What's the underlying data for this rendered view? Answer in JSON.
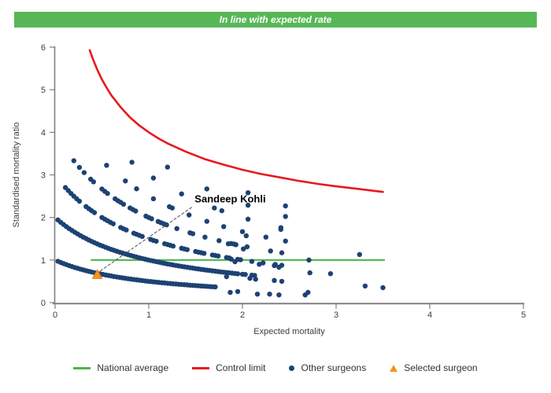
{
  "header": {
    "status_text": "In line with expected rate",
    "bg_color": "#57b757",
    "text_color": "#ffffff"
  },
  "colors": {
    "points": "#1d4273",
    "control_limit": "#e8191c",
    "national_average": "#4cb648",
    "selected": "#f7941d",
    "selected_border": "#d97b0d",
    "axis": "#808080"
  },
  "chart_data": {
    "type": "scatter",
    "xlabel": "Expected mortality",
    "ylabel": "Standardised mortality ratio",
    "xlim": [
      0,
      5
    ],
    "ylim": [
      0,
      6
    ],
    "x_ticks": [
      0,
      1,
      2,
      3,
      4,
      5
    ],
    "y_ticks": [
      0,
      1,
      2,
      3,
      4,
      5,
      6
    ],
    "grid": false,
    "legend_position": "bottom",
    "national_average": {
      "name": "National average",
      "y": 1,
      "points": [
        [
          0.38,
          1
        ],
        [
          3.52,
          1
        ]
      ]
    },
    "control_limit": {
      "name": "Control limit",
      "points": [
        [
          0.37,
          5.93
        ],
        [
          0.4,
          5.74
        ],
        [
          0.45,
          5.47
        ],
        [
          0.5,
          5.24
        ],
        [
          0.55,
          5.05
        ],
        [
          0.6,
          4.87
        ],
        [
          0.7,
          4.59
        ],
        [
          0.8,
          4.35
        ],
        [
          0.9,
          4.16
        ],
        [
          1.0,
          4.0
        ],
        [
          1.1,
          3.86
        ],
        [
          1.2,
          3.74
        ],
        [
          1.4,
          3.54
        ],
        [
          1.6,
          3.37
        ],
        [
          1.8,
          3.24
        ],
        [
          2.0,
          3.12
        ],
        [
          2.2,
          3.02
        ],
        [
          2.4,
          2.94
        ],
        [
          2.6,
          2.86
        ],
        [
          2.8,
          2.79
        ],
        [
          3.0,
          2.73
        ],
        [
          3.2,
          2.68
        ],
        [
          3.5,
          2.6
        ]
      ]
    },
    "other_surgeons": {
      "name": "Other surgeons",
      "points": [
        [
          0.03,
          0.971
        ],
        [
          0.06,
          0.943
        ],
        [
          0.09,
          0.917
        ],
        [
          0.12,
          0.893
        ],
        [
          0.15,
          0.87
        ],
        [
          0.18,
          0.847
        ],
        [
          0.21,
          0.826
        ],
        [
          0.24,
          0.806
        ],
        [
          0.27,
          0.787
        ],
        [
          0.3,
          0.769
        ],
        [
          0.33,
          0.752
        ],
        [
          0.36,
          0.735
        ],
        [
          0.39,
          0.719
        ],
        [
          0.42,
          0.704
        ],
        [
          0.45,
          0.69
        ],
        [
          0.48,
          0.676
        ],
        [
          0.51,
          0.662
        ],
        [
          0.54,
          0.649
        ],
        [
          0.57,
          0.637
        ],
        [
          0.6,
          0.625
        ],
        [
          0.63,
          0.613
        ],
        [
          0.66,
          0.602
        ],
        [
          0.69,
          0.592
        ],
        [
          0.72,
          0.581
        ],
        [
          0.75,
          0.571
        ],
        [
          0.78,
          0.562
        ],
        [
          0.81,
          0.552
        ],
        [
          0.84,
          0.543
        ],
        [
          0.87,
          0.535
        ],
        [
          0.9,
          0.526
        ],
        [
          0.93,
          0.518
        ],
        [
          0.96,
          0.51
        ],
        [
          0.99,
          0.503
        ],
        [
          1.02,
          0.495
        ],
        [
          1.05,
          0.488
        ],
        [
          1.08,
          0.481
        ],
        [
          1.11,
          0.474
        ],
        [
          1.14,
          0.467
        ],
        [
          1.17,
          0.461
        ],
        [
          1.2,
          0.455
        ],
        [
          1.23,
          0.448
        ],
        [
          1.26,
          0.442
        ],
        [
          1.29,
          0.437
        ],
        [
          1.32,
          0.431
        ],
        [
          1.35,
          0.426
        ],
        [
          1.38,
          0.42
        ],
        [
          1.41,
          0.415
        ],
        [
          1.44,
          0.41
        ],
        [
          1.47,
          0.405
        ],
        [
          1.5,
          0.4
        ],
        [
          1.53,
          0.395
        ],
        [
          1.56,
          0.391
        ],
        [
          1.59,
          0.386
        ],
        [
          1.62,
          0.382
        ],
        [
          1.65,
          0.377
        ],
        [
          1.68,
          0.373
        ],
        [
          1.71,
          0.369
        ],
        [
          0.03,
          1.942
        ],
        [
          0.06,
          1.887
        ],
        [
          0.09,
          1.835
        ],
        [
          0.12,
          1.786
        ],
        [
          0.15,
          1.739
        ],
        [
          0.18,
          1.695
        ],
        [
          0.21,
          1.653
        ],
        [
          0.24,
          1.613
        ],
        [
          0.27,
          1.575
        ],
        [
          0.3,
          1.538
        ],
        [
          0.33,
          1.504
        ],
        [
          0.36,
          1.471
        ],
        [
          0.39,
          1.439
        ],
        [
          0.42,
          1.408
        ],
        [
          0.45,
          1.379
        ],
        [
          0.48,
          1.351
        ],
        [
          0.51,
          1.325
        ],
        [
          0.54,
          1.299
        ],
        [
          0.57,
          1.274
        ],
        [
          0.6,
          1.25
        ],
        [
          0.63,
          1.227
        ],
        [
          0.66,
          1.205
        ],
        [
          0.69,
          1.183
        ],
        [
          0.72,
          1.163
        ],
        [
          0.75,
          1.143
        ],
        [
          0.78,
          1.124
        ],
        [
          0.81,
          1.105
        ],
        [
          0.84,
          1.087
        ],
        [
          0.87,
          1.07
        ],
        [
          0.9,
          1.053
        ],
        [
          0.93,
          1.036
        ],
        [
          0.96,
          1.02
        ],
        [
          0.99,
          1.005
        ],
        [
          1.02,
          0.99
        ],
        [
          1.05,
          0.976
        ],
        [
          1.08,
          0.962
        ],
        [
          1.11,
          0.948
        ],
        [
          1.14,
          0.935
        ],
        [
          1.17,
          0.922
        ],
        [
          1.2,
          0.909
        ],
        [
          1.23,
          0.897
        ],
        [
          1.26,
          0.885
        ],
        [
          1.29,
          0.873
        ],
        [
          1.32,
          0.862
        ],
        [
          1.35,
          0.851
        ],
        [
          1.38,
          0.84
        ],
        [
          1.41,
          0.83
        ],
        [
          1.44,
          0.82
        ],
        [
          1.47,
          0.81
        ],
        [
          1.5,
          0.8
        ],
        [
          1.53,
          0.791
        ],
        [
          1.56,
          0.781
        ],
        [
          1.59,
          0.772
        ],
        [
          1.62,
          0.763
        ],
        [
          1.65,
          0.755
        ],
        [
          1.68,
          0.746
        ],
        [
          1.71,
          0.738
        ],
        [
          1.74,
          0.73
        ],
        [
          1.77,
          0.722
        ],
        [
          1.8,
          0.714
        ],
        [
          1.83,
          0.707
        ],
        [
          1.86,
          0.699
        ],
        [
          1.89,
          0.692
        ],
        [
          1.92,
          0.685
        ],
        [
          1.95,
          0.678
        ],
        [
          2.0,
          0.667
        ],
        [
          2.03,
          0.66
        ],
        [
          2.1,
          0.645
        ],
        [
          2.13,
          0.639
        ],
        [
          0.11,
          2.703
        ],
        [
          0.14,
          2.632
        ],
        [
          0.17,
          2.564
        ],
        [
          0.2,
          2.5
        ],
        [
          0.23,
          2.439
        ],
        [
          0.26,
          2.381
        ],
        [
          0.33,
          2.256
        ],
        [
          0.36,
          2.206
        ],
        [
          0.39,
          2.158
        ],
        [
          0.42,
          2.113
        ],
        [
          0.5,
          2.0
        ],
        [
          0.53,
          1.961
        ],
        [
          0.56,
          1.923
        ],
        [
          0.59,
          1.887
        ],
        [
          0.62,
          1.852
        ],
        [
          0.7,
          1.765
        ],
        [
          0.73,
          1.734
        ],
        [
          0.76,
          1.705
        ],
        [
          0.84,
          1.63
        ],
        [
          0.87,
          1.604
        ],
        [
          0.9,
          1.579
        ],
        [
          0.93,
          1.554
        ],
        [
          1.02,
          1.485
        ],
        [
          1.05,
          1.463
        ],
        [
          1.08,
          1.442
        ],
        [
          1.17,
          1.382
        ],
        [
          1.2,
          1.364
        ],
        [
          1.23,
          1.345
        ],
        [
          1.26,
          1.327
        ],
        [
          1.35,
          1.277
        ],
        [
          1.38,
          1.261
        ],
        [
          1.41,
          1.245
        ],
        [
          1.5,
          1.2
        ],
        [
          1.53,
          1.186
        ],
        [
          1.56,
          1.172
        ],
        [
          1.59,
          1.158
        ],
        [
          1.68,
          1.119
        ],
        [
          1.71,
          1.107
        ],
        [
          1.74,
          1.095
        ],
        [
          1.83,
          1.06
        ],
        [
          1.86,
          1.049
        ],
        [
          1.95,
          1.017
        ],
        [
          1.98,
          1.007
        ],
        [
          2.1,
          0.968
        ],
        [
          2.22,
          0.932
        ],
        [
          2.35,
          0.896
        ],
        [
          2.42,
          0.877
        ],
        [
          0.2,
          3.333
        ],
        [
          0.26,
          3.175
        ],
        [
          0.31,
          3.053
        ],
        [
          0.38,
          2.899
        ],
        [
          0.41,
          2.837
        ],
        [
          0.5,
          2.667
        ],
        [
          0.53,
          2.614
        ],
        [
          0.56,
          2.564
        ],
        [
          0.64,
          2.439
        ],
        [
          0.67,
          2.395
        ],
        [
          0.7,
          2.353
        ],
        [
          0.73,
          2.312
        ],
        [
          0.8,
          2.222
        ],
        [
          0.83,
          2.186
        ],
        [
          0.86,
          2.151
        ],
        [
          0.97,
          2.03
        ],
        [
          1.0,
          2.0
        ],
        [
          1.03,
          1.97
        ],
        [
          1.1,
          1.905
        ],
        [
          1.13,
          1.878
        ],
        [
          1.16,
          1.852
        ],
        [
          1.19,
          1.826
        ],
        [
          1.3,
          1.739
        ],
        [
          1.44,
          1.639
        ],
        [
          1.47,
          1.619
        ],
        [
          1.6,
          1.538
        ],
        [
          1.75,
          1.455
        ],
        [
          1.88,
          1.389
        ],
        [
          1.91,
          1.375
        ],
        [
          2.05,
          1.311
        ],
        [
          2.3,
          1.212
        ],
        [
          2.42,
          1.17
        ],
        [
          0.55,
          3.226
        ],
        [
          0.75,
          2.857
        ],
        [
          0.87,
          2.674
        ],
        [
          1.05,
          2.439
        ],
        [
          1.22,
          2.252
        ],
        [
          1.25,
          2.222
        ],
        [
          1.43,
          2.058
        ],
        [
          1.62,
          1.908
        ],
        [
          1.8,
          1.786
        ],
        [
          2.0,
          1.667
        ],
        [
          2.25,
          1.538
        ],
        [
          2.46,
          1.445
        ],
        [
          0.82,
          3.297
        ],
        [
          1.05,
          2.927
        ],
        [
          1.35,
          2.553
        ],
        [
          1.7,
          2.222
        ],
        [
          1.78,
          2.158
        ],
        [
          2.06,
          1.961
        ],
        [
          2.41,
          1.76
        ],
        [
          1.2,
          3.182
        ],
        [
          1.62,
          2.672
        ],
        [
          2.06,
          2.288
        ],
        [
          2.46,
          2.023
        ],
        [
          1.85,
          1.38
        ],
        [
          1.93,
          1.36
        ],
        [
          2.01,
          1.26
        ],
        [
          2.04,
          1.57
        ],
        [
          2.41,
          1.72
        ],
        [
          2.46,
          2.27
        ],
        [
          2.06,
          2.58
        ],
        [
          1.88,
          1.02
        ],
        [
          1.92,
          0.96
        ],
        [
          2.18,
          0.9
        ],
        [
          2.34,
          0.87
        ],
        [
          2.39,
          0.83
        ],
        [
          2.71,
          1.0
        ],
        [
          2.72,
          0.7
        ],
        [
          2.94,
          0.68
        ],
        [
          3.25,
          1.13
        ],
        [
          1.83,
          0.61
        ],
        [
          2.08,
          0.57
        ],
        [
          2.14,
          0.55
        ],
        [
          2.34,
          0.52
        ],
        [
          2.42,
          0.5
        ],
        [
          3.31,
          0.39
        ],
        [
          3.5,
          0.35
        ],
        [
          1.87,
          0.24
        ],
        [
          1.95,
          0.26
        ],
        [
          2.16,
          0.2
        ],
        [
          2.29,
          0.2
        ],
        [
          2.39,
          0.18
        ],
        [
          2.67,
          0.18
        ],
        [
          2.7,
          0.24
        ]
      ]
    },
    "selected_surgeon": {
      "name": "Selected surgeon",
      "points": [
        [
          0.45,
          0.66
        ]
      ]
    },
    "annotation": {
      "label": "Sandeep Kohli",
      "label_pos": [
        1.49,
        2.35
      ],
      "leader_from": [
        1.46,
        2.24
      ],
      "leader_to": [
        0.48,
        0.74
      ]
    }
  },
  "legend": {
    "items": [
      {
        "label": "National average",
        "swatch": "line",
        "color": "#4cb648"
      },
      {
        "label": "Control limit",
        "swatch": "line",
        "color": "#e8191c"
      },
      {
        "label": "Other surgeons",
        "swatch": "dot",
        "color": "#1d4273"
      },
      {
        "label": "Selected surgeon",
        "swatch": "triangle",
        "color": "#f7941d"
      }
    ]
  }
}
